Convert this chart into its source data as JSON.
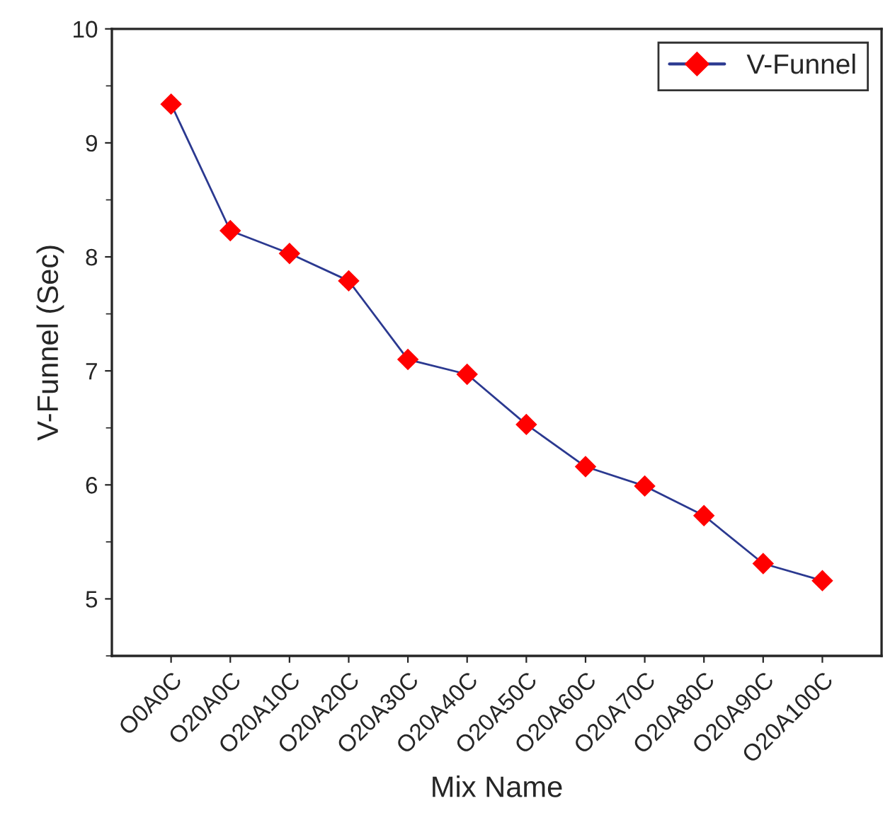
{
  "chart_data": {
    "type": "line",
    "xlabel": "Mix Name",
    "ylabel": "V-Funnel (Sec)",
    "categories": [
      "O0A0C",
      "O20A0C",
      "O20A10C",
      "O20A20C",
      "O20A30C",
      "O20A40C",
      "O20A50C",
      "O20A60C",
      "O20A70C",
      "O20A80C",
      "O20A90C",
      "O20A100C"
    ],
    "series": [
      {
        "name": "V-Funnel",
        "color": "#2b3990",
        "values": [
          9.34,
          8.23,
          8.03,
          7.79,
          7.1,
          6.97,
          6.53,
          6.16,
          5.99,
          5.73,
          5.31,
          5.16
        ]
      }
    ],
    "ylim": [
      4.5,
      10
    ],
    "yticks": [
      5,
      6,
      7,
      8,
      9,
      10
    ],
    "marker": "diamond",
    "line_style": "solid",
    "legend": "top right",
    "grid": false
  }
}
